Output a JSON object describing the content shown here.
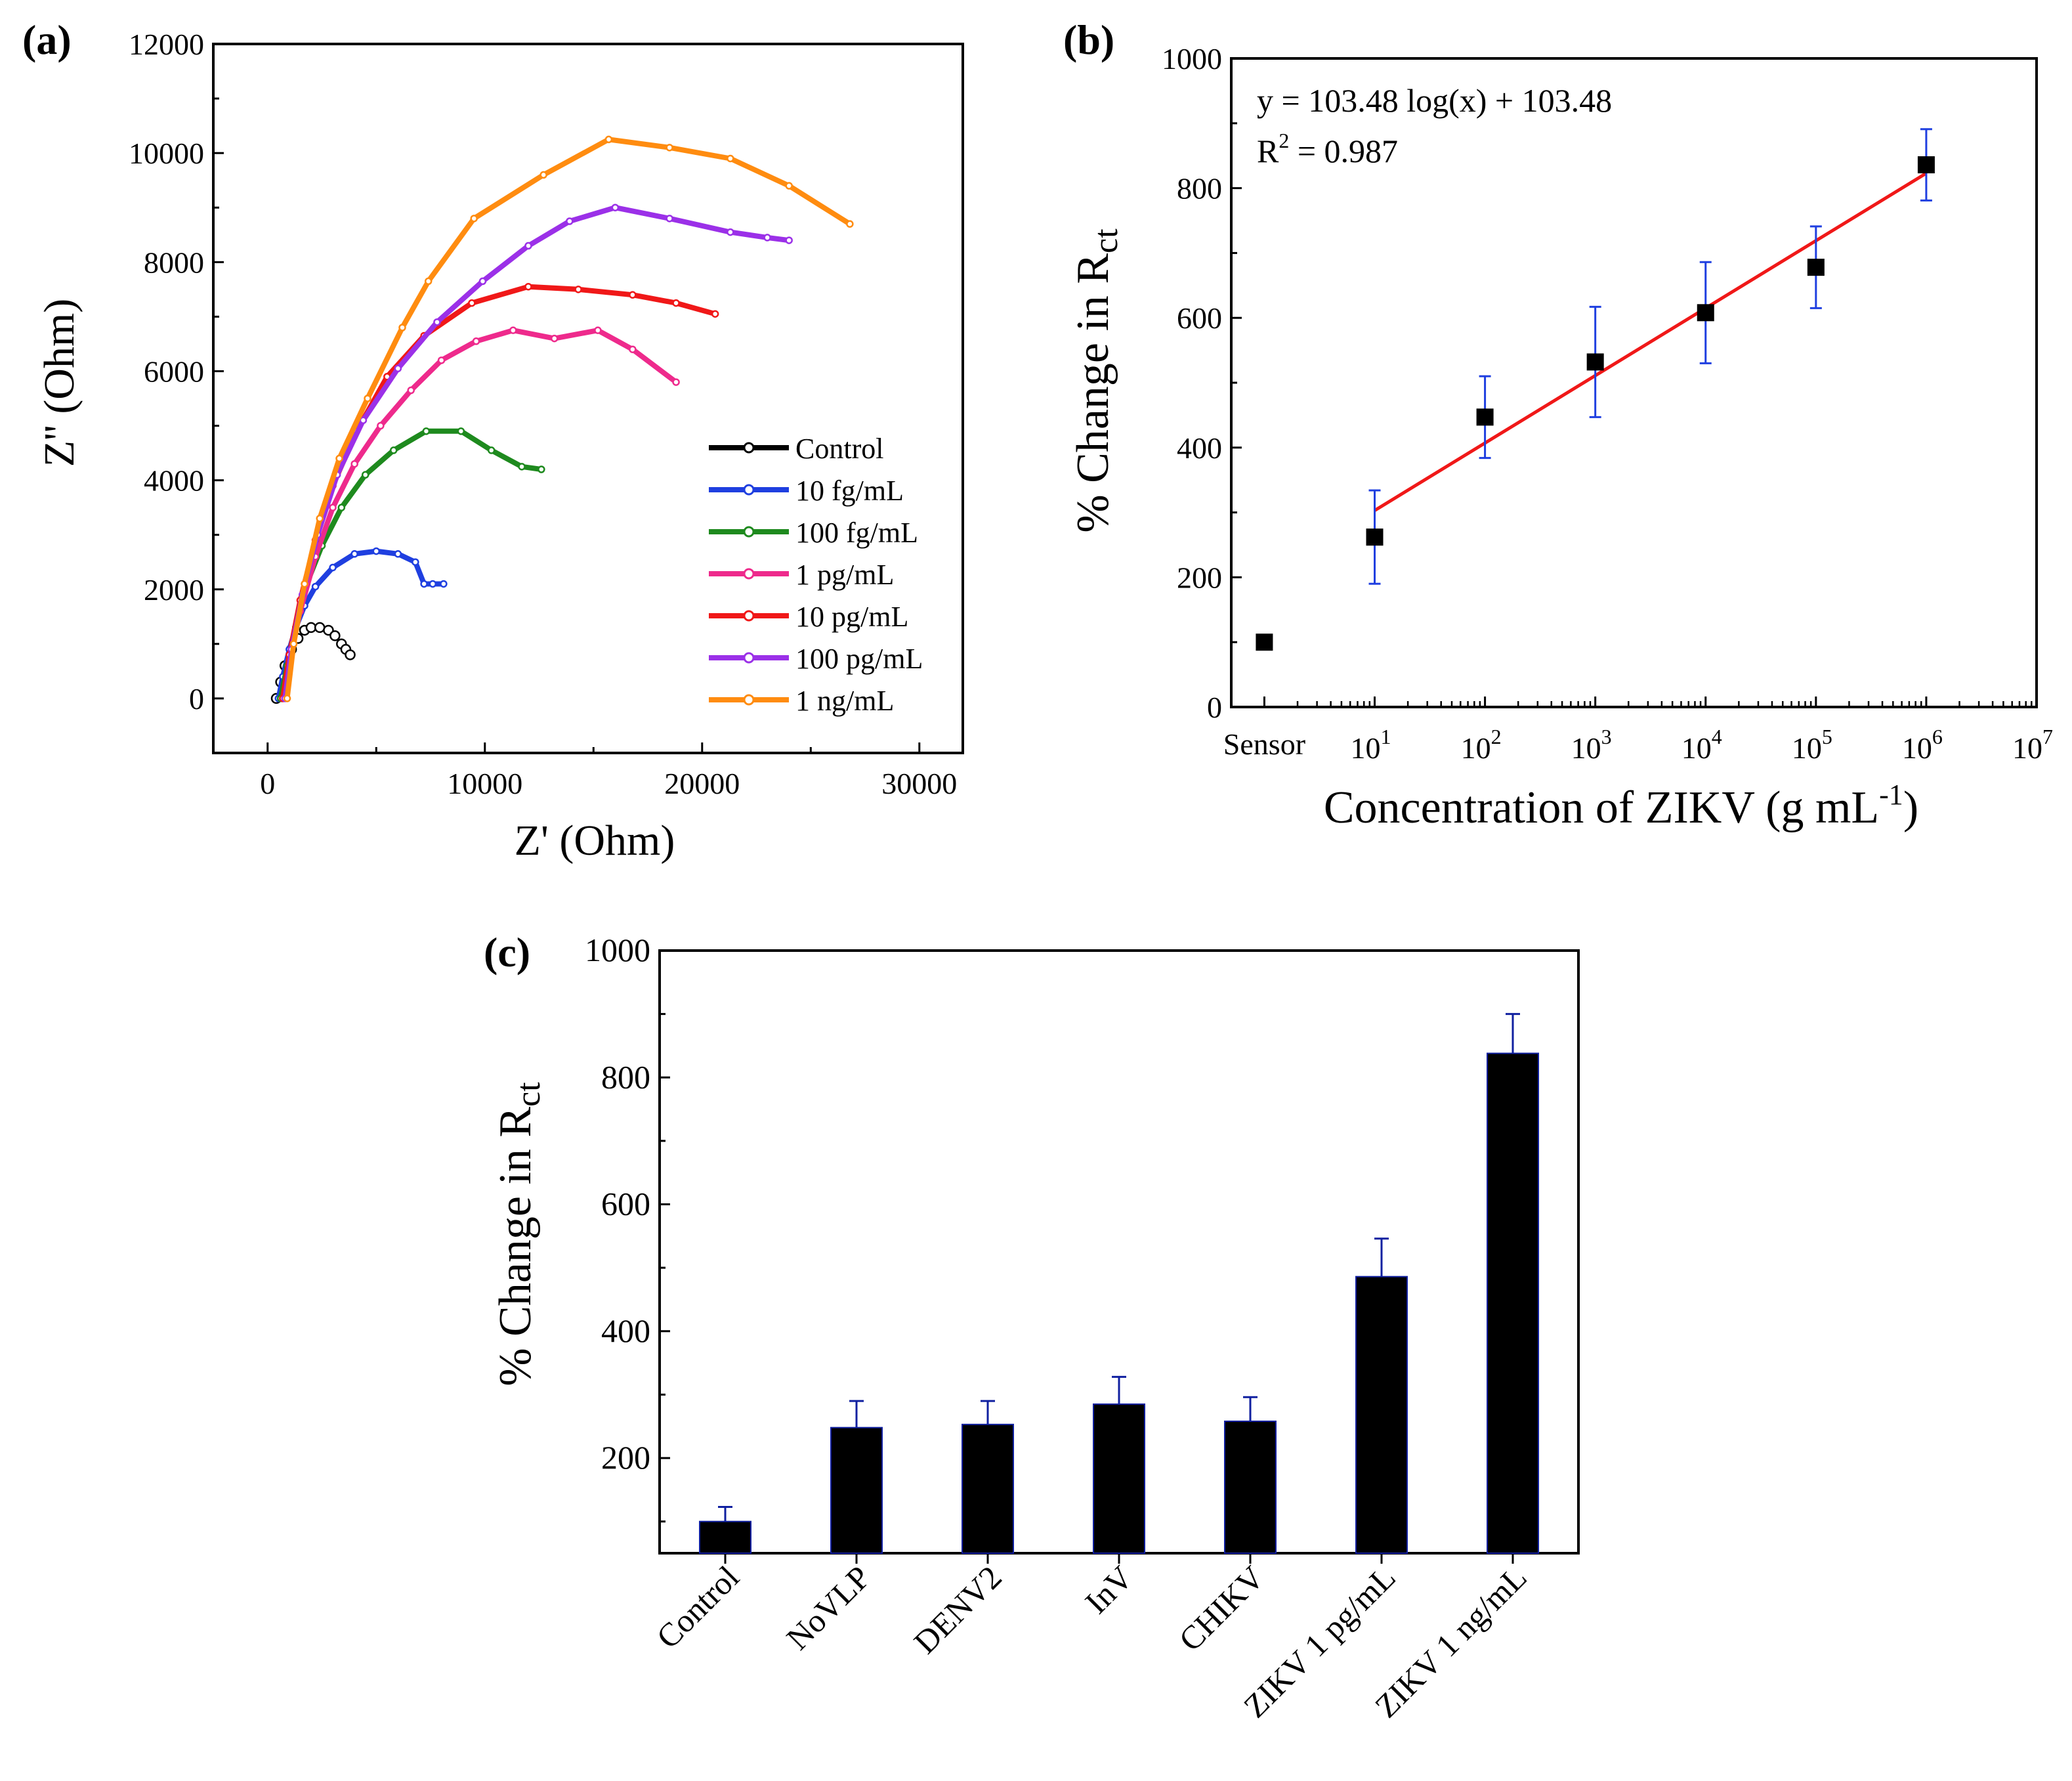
{
  "colors": {
    "control": "#000000",
    "10fg": "#1f3fe0",
    "100fg": "#1e8a1e",
    "1pg": "#ee2a8c",
    "10pg": "#f01818",
    "100pg": "#9b30e8",
    "1ng": "#ff8c10",
    "fit": "#f01818",
    "errorbar_b": "#1f3fe0",
    "errorbar_c": "#1020a0"
  },
  "chart_data": [
    {
      "panel": "(a)",
      "type": "line",
      "xlabel": "Z' (Ohm)",
      "ylabel": "Z'' (Ohm)",
      "xlim": [
        -2500,
        32000
      ],
      "ylim": [
        -1000,
        12000
      ],
      "xticks": [
        0,
        10000,
        20000,
        30000
      ],
      "yticks": [
        0,
        2000,
        4000,
        6000,
        8000,
        10000,
        12000
      ],
      "legend_position": "lower-right",
      "series": [
        {
          "name": "Control",
          "color_key": "control",
          "x": [
            400,
            600,
            800,
            1100,
            1400,
            1700,
            2000,
            2400,
            2800,
            3100,
            3400,
            3600,
            3800
          ],
          "y": [
            0,
            300,
            600,
            900,
            1100,
            1250,
            1300,
            1300,
            1250,
            1150,
            1000,
            900,
            800
          ]
        },
        {
          "name": "10 fg/mL",
          "color_key": "10fg",
          "x": [
            500,
            700,
            1000,
            1300,
            1700,
            2200,
            3000,
            4000,
            5000,
            6000,
            6800,
            7200,
            7600,
            8100
          ],
          "y": [
            0,
            400,
            900,
            1300,
            1700,
            2050,
            2400,
            2650,
            2700,
            2650,
            2500,
            2100,
            2100,
            2100
          ]
        },
        {
          "name": "100 fg/mL",
          "color_key": "100fg",
          "x": [
            600,
            900,
            1300,
            1800,
            2500,
            3400,
            4500,
            5800,
            7300,
            8900,
            10300,
            11700,
            12600
          ],
          "y": [
            0,
            600,
            1300,
            2100,
            2800,
            3500,
            4100,
            4550,
            4900,
            4900,
            4550,
            4250,
            4200
          ]
        },
        {
          "name": "1 pg/mL",
          "color_key": "1pg",
          "x": [
            700,
            1000,
            1500,
            2200,
            3000,
            4000,
            5200,
            6600,
            8000,
            9600,
            11300,
            13200,
            15200,
            16800,
            18800
          ],
          "y": [
            0,
            700,
            1600,
            2600,
            3500,
            4300,
            5000,
            5650,
            6200,
            6550,
            6750,
            6600,
            6750,
            6400,
            5800
          ]
        },
        {
          "name": "10 pg/mL",
          "color_key": "10pg",
          "x": [
            700,
            1000,
            1500,
            2200,
            3000,
            4100,
            5500,
            7200,
            9400,
            12000,
            14300,
            16800,
            18800,
            20600
          ],
          "y": [
            0,
            800,
            1800,
            2900,
            3900,
            4900,
            5900,
            6650,
            7250,
            7550,
            7500,
            7400,
            7250,
            7050
          ]
        },
        {
          "name": "100 pg/mL",
          "color_key": "100pg",
          "x": [
            800,
            1100,
            1600,
            2300,
            3200,
            4400,
            6000,
            7800,
            9900,
            12000,
            13900,
            16000,
            18500,
            21300,
            23000,
            24000
          ],
          "y": [
            0,
            900,
            1900,
            3000,
            4100,
            5100,
            6050,
            6900,
            7650,
            8300,
            8750,
            9000,
            8800,
            8550,
            8450,
            8400
          ]
        },
        {
          "name": "1 ng/mL",
          "color_key": "1ng",
          "x": [
            900,
            1200,
            1700,
            2400,
            3300,
            4600,
            6200,
            7400,
            9500,
            12700,
            15700,
            18500,
            21300,
            24000,
            26800
          ],
          "y": [
            0,
            1000,
            2100,
            3300,
            4400,
            5500,
            6800,
            7650,
            8800,
            9600,
            10250,
            10100,
            9900,
            9400,
            8700
          ]
        }
      ]
    },
    {
      "panel": "(b)",
      "type": "scatter",
      "xlabel": "Concentration of ZIKV (g mL",
      "xlabel_sup": "-1",
      "xlabel_close": ")",
      "ylabel": "% Change in R",
      "ylabel_sub": "ct",
      "xscale": "log",
      "xlim_exp": [
        -0.3,
        7
      ],
      "ylim": [
        0,
        1000
      ],
      "yticks": [
        0,
        200,
        400,
        600,
        800,
        1000
      ],
      "xtick_exps": [
        "1",
        "2",
        "3",
        "4",
        "5",
        "6",
        "7"
      ],
      "sensor_label": "Sensor",
      "equation": "y = 103.48 log(x) + 103.48",
      "r2_base": "R",
      "r2_sup": "2",
      "r2_value": " = 0.987",
      "points": [
        {
          "label": "Sensor",
          "exp": 0,
          "y": 100,
          "err": 8
        },
        {
          "exp": 1,
          "y": 262,
          "err": 72
        },
        {
          "exp": 2,
          "y": 447,
          "err": 63
        },
        {
          "exp": 3,
          "y": 532,
          "err": 85
        },
        {
          "exp": 4,
          "y": 608,
          "err": 78
        },
        {
          "exp": 5,
          "y": 678,
          "err": 63
        },
        {
          "exp": 6,
          "y": 836,
          "err": 55
        }
      ],
      "fit": {
        "exp_from": 1,
        "exp_to": 6,
        "y_from": 303,
        "y_to": 823
      }
    },
    {
      "panel": "(c)",
      "type": "bar",
      "ylabel": "% Change in R",
      "ylabel_sub": "ct",
      "ylim": [
        50,
        1000
      ],
      "yticks": [
        200,
        400,
        600,
        800,
        1000
      ],
      "categories": [
        "Control",
        "NoVLP",
        "DENV2",
        "InV",
        "CHIKV",
        "ZIKV 1 pg/mL",
        "ZIKV 1 ng/mL"
      ],
      "values": [
        100,
        248,
        253,
        285,
        258,
        486,
        838
      ],
      "errors": [
        23,
        42,
        37,
        43,
        38,
        60,
        62
      ]
    }
  ]
}
